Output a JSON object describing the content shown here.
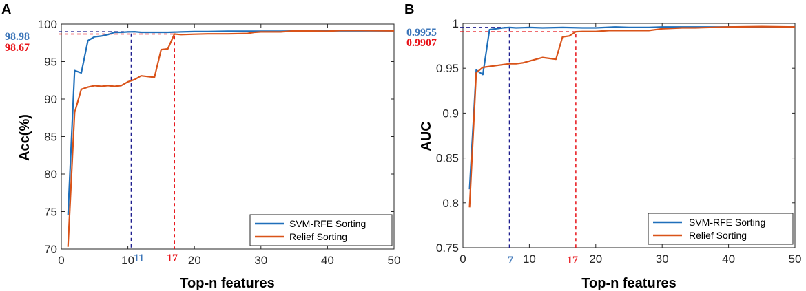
{
  "colors": {
    "svm": "#1f6fba",
    "relief": "#d95319",
    "blue_dashed": "#1f1f8f",
    "red_dashed": "#e8141a",
    "blue_text": "#3a74b8",
    "red_text": "#e8141a"
  },
  "chart_data": [
    {
      "panel": "A",
      "type": "line",
      "xlabel": "Top-n features",
      "ylabel": "Acc(%)",
      "xlim": [
        0,
        50
      ],
      "ylim": [
        70,
        100
      ],
      "xticks": [
        0,
        10,
        20,
        30,
        40,
        50
      ],
      "yticks": [
        70,
        75,
        80,
        85,
        90,
        95,
        100
      ],
      "legend": {
        "placement": "bottom-right",
        "entries": [
          "SVM-RFE Sorting",
          "Relief Sorting"
        ]
      },
      "series": [
        {
          "name": "SVM-RFE Sorting",
          "color_key": "svm",
          "x": [
            1,
            2,
            3,
            4,
            5,
            6,
            7,
            8,
            9,
            10,
            11,
            12,
            14,
            16,
            18,
            20,
            22,
            25,
            28,
            30,
            33,
            36,
            40,
            42,
            45,
            48,
            50
          ],
          "y": [
            74.5,
            93.8,
            93.5,
            97.8,
            98.3,
            98.4,
            98.6,
            98.9,
            98.9,
            98.95,
            98.98,
            98.9,
            98.9,
            98.9,
            98.95,
            99.0,
            99.0,
            99.05,
            99.05,
            99.05,
            99.05,
            99.1,
            99.1,
            99.1,
            99.1,
            99.1,
            99.1
          ]
        },
        {
          "name": "Relief Sorting",
          "color_key": "relief",
          "x": [
            1,
            2,
            3,
            4,
            5,
            6,
            7,
            8,
            9,
            10,
            11,
            12,
            13,
            14,
            15,
            16,
            17,
            18,
            20,
            22,
            25,
            28,
            29,
            30,
            33,
            35,
            40,
            42,
            45,
            50
          ],
          "y": [
            70.3,
            88.2,
            91.3,
            91.6,
            91.8,
            91.7,
            91.8,
            91.7,
            91.8,
            92.3,
            92.6,
            93.1,
            93.0,
            92.9,
            96.6,
            96.7,
            98.67,
            98.6,
            98.65,
            98.7,
            98.7,
            98.75,
            98.9,
            98.95,
            98.95,
            99.1,
            99.05,
            99.15,
            99.15,
            99.1
          ]
        }
      ],
      "annotations": {
        "svm_value": "98.98",
        "relief_value": "98.67",
        "svm_n": "11",
        "relief_n": "17",
        "svm_point": [
          10.5,
          98.98
        ],
        "relief_point": [
          17,
          98.67
        ]
      }
    },
    {
      "panel": "B",
      "type": "line",
      "xlabel": "Top-n features",
      "ylabel": "AUC",
      "xlim": [
        0,
        50
      ],
      "ylim": [
        0.75,
        1
      ],
      "xticks": [
        0,
        10,
        20,
        30,
        40,
        50
      ],
      "yticks": [
        0.75,
        0.8,
        0.85,
        0.9,
        0.95,
        1
      ],
      "legend": {
        "placement": "bottom-right",
        "entries": [
          "SVM-RFE Sorting",
          "Relief Sorting"
        ]
      },
      "series": [
        {
          "name": "SVM-RFE Sorting",
          "color_key": "svm",
          "x": [
            1,
            2,
            3,
            4,
            5,
            6,
            7,
            8,
            10,
            12,
            15,
            18,
            20,
            23,
            25,
            28,
            30,
            35,
            40,
            45,
            50
          ],
          "y": [
            0.815,
            0.948,
            0.943,
            0.993,
            0.994,
            0.995,
            0.9955,
            0.995,
            0.9955,
            0.995,
            0.9955,
            0.995,
            0.995,
            0.996,
            0.9955,
            0.9955,
            0.996,
            0.996,
            0.996,
            0.996,
            0.996
          ]
        },
        {
          "name": "Relief Sorting",
          "color_key": "relief",
          "x": [
            1,
            2,
            3,
            4,
            5,
            6,
            7,
            8,
            9,
            10,
            11,
            12,
            13,
            14,
            15,
            16,
            17,
            18,
            20,
            22,
            25,
            28,
            30,
            33,
            35,
            40,
            45,
            50
          ],
          "y": [
            0.795,
            0.945,
            0.951,
            0.952,
            0.953,
            0.954,
            0.955,
            0.955,
            0.956,
            0.958,
            0.96,
            0.962,
            0.961,
            0.96,
            0.985,
            0.986,
            0.9907,
            0.991,
            0.991,
            0.992,
            0.992,
            0.992,
            0.994,
            0.995,
            0.995,
            0.996,
            0.9965,
            0.996
          ]
        }
      ],
      "annotations": {
        "svm_value": "0.9955",
        "relief_value": "0.9907",
        "svm_n": "7",
        "relief_n": "17",
        "svm_point": [
          7,
          0.9955
        ],
        "relief_point": [
          17,
          0.9907
        ]
      }
    }
  ]
}
